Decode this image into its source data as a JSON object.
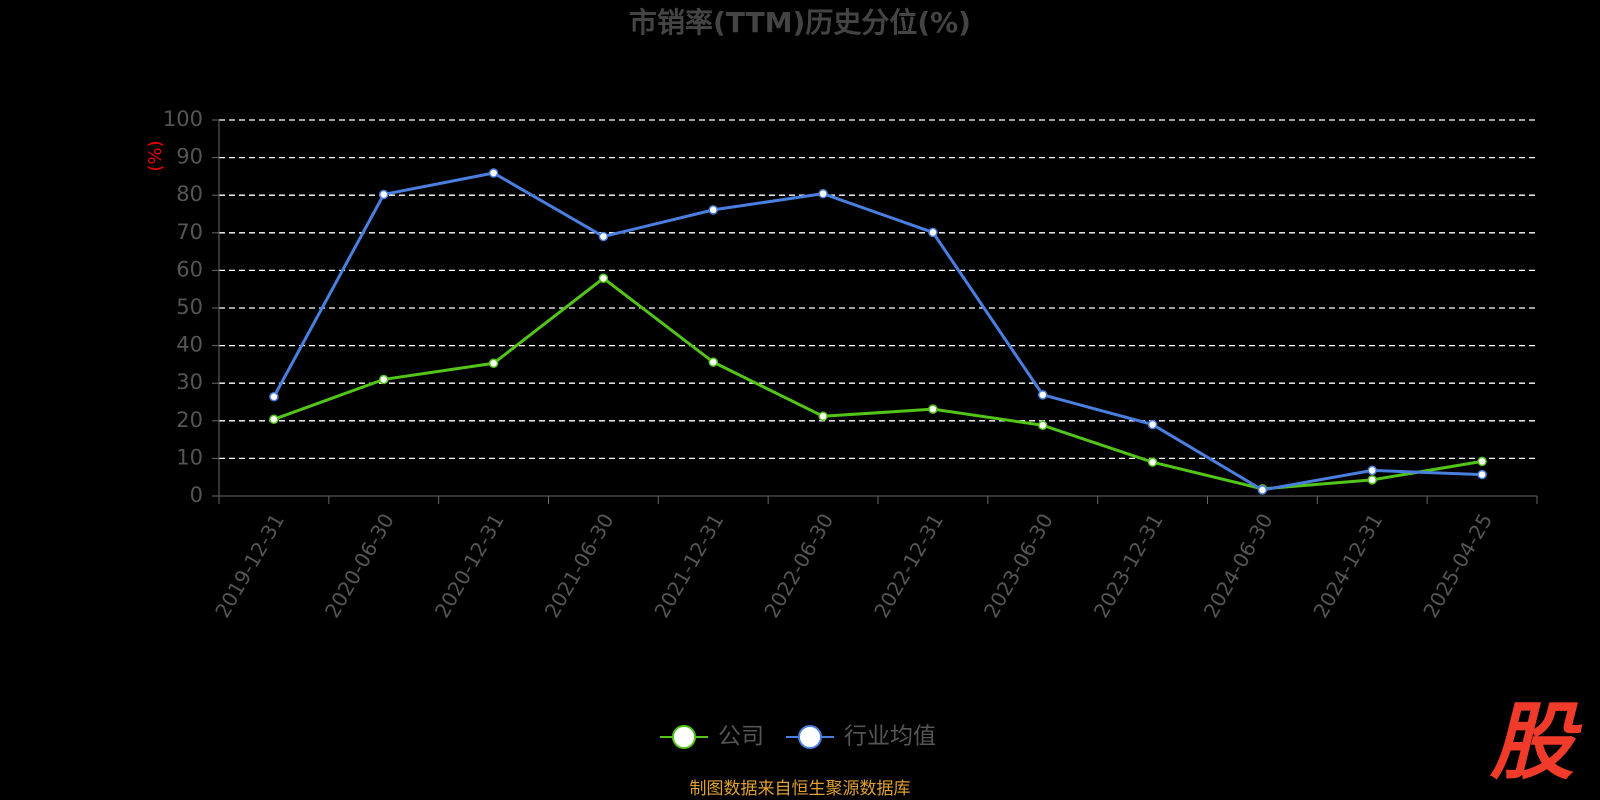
{
  "chart_data": {
    "type": "line",
    "title": "市销率(TTM)历史分位(%)",
    "y_label": "(%)",
    "categories": [
      "2019-12-31",
      "2020-06-30",
      "2020-12-31",
      "2021-06-30",
      "2021-12-31",
      "2022-06-30",
      "2022-12-31",
      "2023-06-30",
      "2023-12-31",
      "2024-06-30",
      "2024-12-31",
      "2025-04-25"
    ],
    "series": [
      {
        "name": "公司",
        "color": "#52c41a",
        "values": [
          20.4,
          31,
          35.3,
          57.9,
          35.6,
          21.2,
          23.1,
          18.8,
          9,
          1.9,
          4.3,
          9.2
        ]
      },
      {
        "name": "行业均值",
        "color": "#4a7fe0",
        "values": [
          26.4,
          80.2,
          85.9,
          69,
          76.1,
          80.4,
          70.1,
          26.9,
          19,
          1.6,
          6.8,
          5.7
        ]
      }
    ],
    "ylim": [
      0,
      100
    ],
    "yticks": [
      0,
      10,
      20,
      30,
      40,
      50,
      60,
      70,
      80,
      90,
      100
    ],
    "grid": true,
    "legend": "bottom",
    "source": "制图数据来自恒生聚源数据库"
  },
  "logo": "股"
}
